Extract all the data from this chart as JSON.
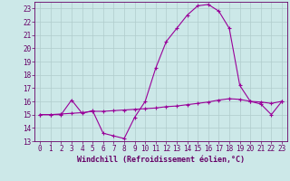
{
  "title": "",
  "xlabel": "Windchill (Refroidissement éolien,°C)",
  "ylabel": "",
  "bg_color": "#cce8e8",
  "line_color": "#990099",
  "xlim": [
    -0.5,
    23.5
  ],
  "ylim": [
    13,
    23.5
  ],
  "xticks": [
    0,
    1,
    2,
    3,
    4,
    5,
    6,
    7,
    8,
    9,
    10,
    11,
    12,
    13,
    14,
    15,
    16,
    17,
    18,
    19,
    20,
    21,
    22,
    23
  ],
  "yticks": [
    13,
    14,
    15,
    16,
    17,
    18,
    19,
    20,
    21,
    22,
    23
  ],
  "curve1_x": [
    0,
    1,
    2,
    3,
    4,
    5,
    6,
    7,
    8,
    9,
    10,
    11,
    12,
    13,
    14,
    15,
    16,
    17,
    18,
    19,
    20,
    21,
    22,
    23
  ],
  "curve1_y": [
    15.0,
    15.0,
    15.0,
    16.1,
    15.1,
    15.3,
    13.6,
    13.4,
    13.2,
    14.8,
    16.0,
    18.5,
    20.5,
    21.5,
    22.5,
    23.2,
    23.3,
    22.8,
    21.5,
    17.2,
    16.0,
    15.8,
    15.0,
    16.0
  ],
  "curve2_x": [
    0,
    1,
    2,
    3,
    4,
    5,
    6,
    7,
    8,
    9,
    10,
    11,
    12,
    13,
    14,
    15,
    16,
    17,
    18,
    19,
    20,
    21,
    22,
    23
  ],
  "curve2_y": [
    15.0,
    15.0,
    15.05,
    15.1,
    15.15,
    15.25,
    15.25,
    15.3,
    15.35,
    15.4,
    15.45,
    15.5,
    15.6,
    15.65,
    15.75,
    15.85,
    15.95,
    16.1,
    16.2,
    16.15,
    16.0,
    15.95,
    15.85,
    16.0
  ],
  "grid_color": "#b0cccc",
  "font_color": "#660066",
  "tick_fontsize": 5.5,
  "xlabel_fontsize": 6.0
}
